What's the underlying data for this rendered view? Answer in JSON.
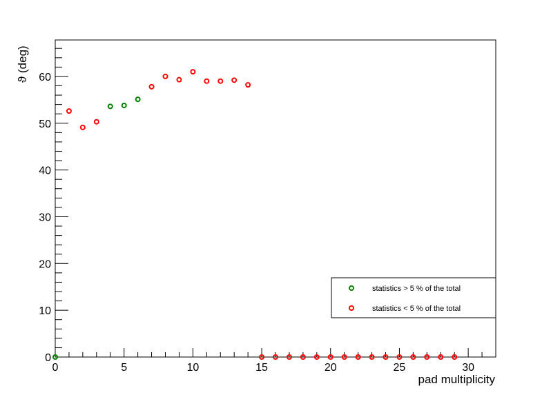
{
  "chart_data": {
    "type": "scatter",
    "title": "",
    "xlabel": "pad multiplicity",
    "ylabel": "ϑ (deg)",
    "xlim": [
      0,
      32
    ],
    "ylim": [
      0,
      67.8
    ],
    "grid": false,
    "x_ticks": [
      0,
      5,
      10,
      15,
      20,
      25,
      30
    ],
    "y_ticks": [
      0,
      10,
      20,
      30,
      40,
      50,
      60
    ],
    "legend_position": "right",
    "series": [
      {
        "name": "statistics > 5 % of the total",
        "color": "#008000",
        "points": [
          [
            0,
            0
          ],
          [
            4,
            53.6
          ],
          [
            5,
            53.8
          ],
          [
            6,
            55.1
          ]
        ]
      },
      {
        "name": "statistics < 5 % of the total",
        "color": "#ff0000",
        "points": [
          [
            1,
            52.6
          ],
          [
            2,
            49.1
          ],
          [
            3,
            50.3
          ],
          [
            7,
            57.8
          ],
          [
            8,
            60.0
          ],
          [
            9,
            59.3
          ],
          [
            10,
            61.0
          ],
          [
            11,
            59.0
          ],
          [
            12,
            59.0
          ],
          [
            13,
            59.2
          ],
          [
            14,
            58.2
          ],
          [
            15,
            0
          ],
          [
            16,
            0
          ],
          [
            17,
            0
          ],
          [
            18,
            0
          ],
          [
            19,
            0
          ],
          [
            20,
            0
          ],
          [
            21,
            0
          ],
          [
            22,
            0
          ],
          [
            23,
            0
          ],
          [
            24,
            0
          ],
          [
            25,
            0
          ],
          [
            26,
            0
          ],
          [
            27,
            0
          ],
          [
            28,
            0
          ],
          [
            29,
            0
          ]
        ]
      }
    ]
  }
}
